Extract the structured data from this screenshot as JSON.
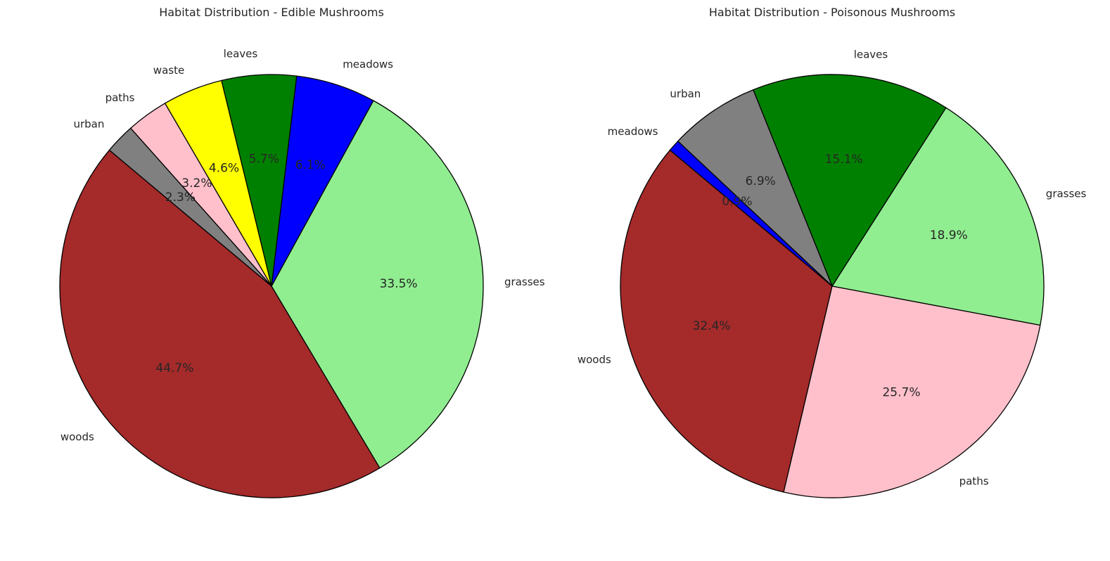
{
  "chart_data": [
    {
      "type": "pie",
      "title": "Habitat Distribution - Edible Mushrooms",
      "slices": [
        {
          "label": "woods",
          "value": 44.7,
          "color": "#a52a2a"
        },
        {
          "label": "grasses",
          "value": 33.5,
          "color": "#90ee90"
        },
        {
          "label": "meadows",
          "value": 6.1,
          "color": "#0000ff"
        },
        {
          "label": "leaves",
          "value": 5.7,
          "color": "#008000"
        },
        {
          "label": "waste",
          "value": 4.6,
          "color": "#ffff00"
        },
        {
          "label": "paths",
          "value": 3.2,
          "color": "#ffc0cb"
        },
        {
          "label": "urban",
          "value": 2.3,
          "color": "#808080"
        }
      ]
    },
    {
      "type": "pie",
      "title": "Habitat Distribution - Poisonous Mushrooms",
      "slices": [
        {
          "label": "woods",
          "value": 32.4,
          "color": "#a52a2a"
        },
        {
          "label": "paths",
          "value": 25.7,
          "color": "#ffc0cb"
        },
        {
          "label": "grasses",
          "value": 18.9,
          "color": "#90ee90"
        },
        {
          "label": "leaves",
          "value": 15.1,
          "color": "#008000"
        },
        {
          "label": "urban",
          "value": 6.9,
          "color": "#808080"
        },
        {
          "label": "meadows",
          "value": 0.9,
          "color": "#0000ff"
        }
      ]
    }
  ]
}
